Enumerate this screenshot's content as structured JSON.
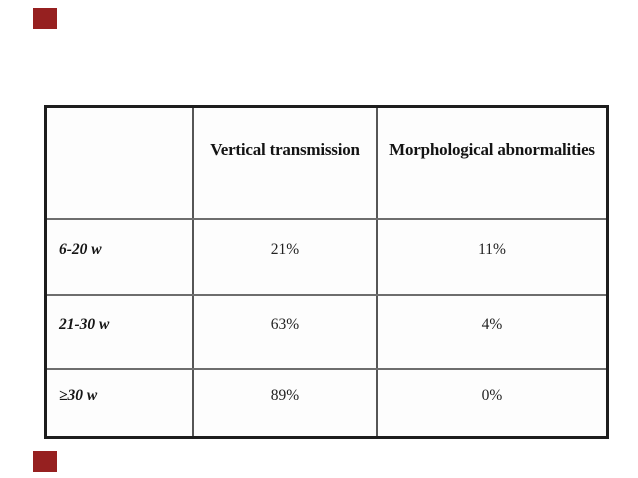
{
  "page": {
    "background_color": "#ffffff"
  },
  "markers": {
    "color": "#962020"
  },
  "table": {
    "columns": [
      "",
      "Vertical transmission",
      "Morphological abnormalities"
    ],
    "rows": [
      {
        "label": "6-20 w",
        "vertical_transmission": "21%",
        "morphological_abnormalities": "11%"
      },
      {
        "label": "21-30 w",
        "vertical_transmission": "63%",
        "morphological_abnormalities": "4%"
      },
      {
        "label": "≥30 w",
        "vertical_transmission": "89%",
        "morphological_abnormalities": "0%"
      }
    ]
  },
  "chart_data": {
    "type": "table",
    "title": "",
    "columns": [
      "",
      "Vertical transmission",
      "Morphological abnormalities"
    ],
    "rows": [
      [
        "6-20 w",
        "21%",
        "11%"
      ],
      [
        "21-30 w",
        "63%",
        "4%"
      ],
      [
        "≥30 w",
        "89%",
        "0%"
      ]
    ],
    "series": [
      {
        "name": "Vertical transmission",
        "categories": [
          "6-20 w",
          "21-30 w",
          "≥30 w"
        ],
        "values": [
          21,
          63,
          89
        ]
      },
      {
        "name": "Morphological abnormalities",
        "categories": [
          "6-20 w",
          "21-30 w",
          "≥30 w"
        ],
        "values": [
          11,
          4,
          0
        ]
      }
    ],
    "values_unit": "percent"
  }
}
